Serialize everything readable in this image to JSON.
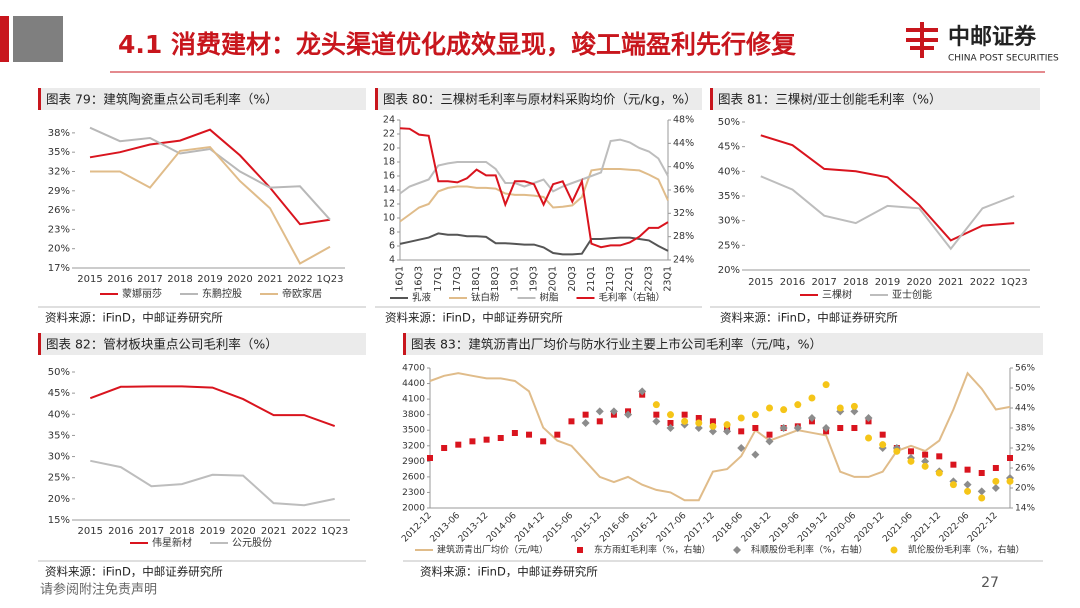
{
  "header": {
    "title": "4.1 消费建材：龙头渠道优化成效显现，竣工端盈利先行修复",
    "logo_cn": "中邮证券",
    "logo_en": "CHINA POST SECURITIES"
  },
  "footer": {
    "disclaimer": "请参阅附注免责声明",
    "page": "27"
  },
  "chart_data": [
    {
      "type": "line",
      "title": "图表 79：建筑陶瓷重点公司毛利率（%）",
      "source": "资料来源：iFinD，中邮证券研究所",
      "categories": [
        "2015",
        "2016",
        "2017",
        "2018",
        "2019",
        "2020",
        "2021",
        "2022",
        "1Q23"
      ],
      "ylim": [
        17,
        40
      ],
      "yticks": [
        {
          "value": 17,
          "label": "17%"
        },
        {
          "value": 20,
          "label": "20%"
        },
        {
          "value": 23,
          "label": "23%"
        },
        {
          "value": 26,
          "label": "26%"
        },
        {
          "value": 29,
          "label": "29%"
        },
        {
          "value": 32,
          "label": "32%"
        },
        {
          "value": 35,
          "label": "35%"
        },
        {
          "value": 38,
          "label": "38%"
        }
      ],
      "series": [
        {
          "name": "蒙娜丽莎",
          "color": "#d9141e",
          "values": [
            34.2,
            35.0,
            36.2,
            36.8,
            38.5,
            34.5,
            29.5,
            23.8,
            24.5
          ]
        },
        {
          "name": "东鹏控股",
          "color": "#b8b8b8",
          "values": [
            38.8,
            36.7,
            37.2,
            34.8,
            35.5,
            32.0,
            29.5,
            29.7,
            24.5
          ]
        },
        {
          "name": "帝欧家居",
          "color": "#e0bc8a",
          "values": [
            32.0,
            32.0,
            29.5,
            35.2,
            35.8,
            30.5,
            26.3,
            17.7,
            20.3
          ]
        }
      ]
    },
    {
      "type": "line",
      "title": "图表 80：三棵树毛利率与原材料采购均价（元/kg，%）",
      "source": "资料来源：iFinD，中邮证券研究所",
      "categories": [
        "16Q1",
        null,
        "16Q3",
        null,
        "17Q1",
        null,
        "17Q3",
        null,
        "18Q1",
        null,
        "18Q3",
        null,
        "19Q1",
        null,
        "19Q3",
        null,
        "20Q1",
        null,
        "20Q3",
        null,
        "21Q1",
        null,
        "21Q3",
        null,
        "22Q1",
        null,
        "22Q3",
        null,
        "23Q1"
      ],
      "ylim": [
        4,
        24
      ],
      "yticks": [
        4,
        6,
        8,
        10,
        12,
        14,
        16,
        18,
        20,
        22,
        24
      ],
      "y2lim": [
        24,
        48
      ],
      "y2ticks": [
        {
          "value": 24,
          "label": "24%"
        },
        {
          "value": 28,
          "label": "28%"
        },
        {
          "value": 32,
          "label": "32%"
        },
        {
          "value": 36,
          "label": "36%"
        },
        {
          "value": 40,
          "label": "40%"
        },
        {
          "value": 44,
          "label": "44%"
        },
        {
          "value": 48,
          "label": "48%"
        }
      ],
      "series": [
        {
          "name": "乳液",
          "color": "#555555",
          "values": [
            6.3,
            6.6,
            6.9,
            7.2,
            7.8,
            7.6,
            7.6,
            7.4,
            7.4,
            7.3,
            6.4,
            6.4,
            6.3,
            6.2,
            6.2,
            5.8,
            5.0,
            4.8,
            4.8,
            4.9,
            7.0,
            7.0,
            7.1,
            7.2,
            7.2,
            7.0,
            6.8,
            6.0,
            5.3
          ]
        },
        {
          "name": "钛白粉",
          "color": "#e0bc8a",
          "values": [
            9.5,
            10.5,
            11.5,
            12,
            13.8,
            14.3,
            14.5,
            14.5,
            14.3,
            14.3,
            14.2,
            13.5,
            13.3,
            13.3,
            13.2,
            13.0,
            11.5,
            11.6,
            11.8,
            13,
            16.8,
            17.0,
            17.0,
            17.0,
            16.9,
            16.8,
            16.2,
            15.5,
            12.5
          ]
        },
        {
          "name": "树脂",
          "color": "#bdbdbd",
          "values": [
            13.5,
            14.5,
            15,
            15.5,
            17.5,
            17.8,
            18,
            18,
            18,
            18,
            17,
            15,
            15,
            14.5,
            15,
            15.5,
            13.8,
            14.5,
            15,
            15.5,
            16,
            16.5,
            21,
            21.2,
            20.8,
            20,
            19.5,
            18.5,
            16
          ]
        },
        {
          "name": "毛利率（右轴）",
          "color": "#d9141e",
          "axis": "y2",
          "values": [
            46.6,
            46.5,
            45.5,
            45.3,
            37.5,
            37.5,
            37.3,
            38,
            39.5,
            38.5,
            38.5,
            33.5,
            37.5,
            37.5,
            37.0,
            33.5,
            37.0,
            37.5,
            34,
            37.5,
            26.8,
            26.2,
            26.5,
            26.5,
            27,
            28,
            29.5,
            29.5,
            30.5
          ]
        }
      ]
    },
    {
      "type": "line",
      "title": "图表 81：三棵树/亚士创能毛利率（%）",
      "source": "资料来源：iFinD，中邮证券研究所",
      "categories": [
        "2015",
        "2016",
        "2017",
        "2018",
        "2019",
        "2020",
        "2021",
        "2022",
        "1Q23"
      ],
      "ylim": [
        20,
        50
      ],
      "yticks": [
        {
          "value": 20,
          "label": "20%"
        },
        {
          "value": 25,
          "label": "25%"
        },
        {
          "value": 30,
          "label": "30%"
        },
        {
          "value": 35,
          "label": "35%"
        },
        {
          "value": 40,
          "label": "40%"
        },
        {
          "value": 45,
          "label": "45%"
        },
        {
          "value": 50,
          "label": "50%"
        }
      ],
      "series": [
        {
          "name": "三棵树",
          "color": "#d9141e",
          "values": [
            47.3,
            45.3,
            40.5,
            40.0,
            38.8,
            33.2,
            26.0,
            29.0,
            29.5
          ]
        },
        {
          "name": "亚士创能",
          "color": "#bdbdbd",
          "values": [
            39.0,
            36.3,
            31.0,
            29.5,
            33.0,
            32.5,
            24.3,
            32.5,
            35.0
          ]
        }
      ]
    },
    {
      "type": "line",
      "title": "图表 82：管材板块重点公司毛利率（%）",
      "source": "资料来源：iFinD，中邮证券研究所",
      "categories": [
        "2015",
        "2016",
        "2017",
        "2018",
        "2019",
        "2020",
        "2021",
        "2022",
        "1Q23"
      ],
      "ylim": [
        15,
        50
      ],
      "yticks": [
        {
          "value": 15,
          "label": "15%"
        },
        {
          "value": 20,
          "label": "20%"
        },
        {
          "value": 25,
          "label": "25%"
        },
        {
          "value": 30,
          "label": "30%"
        },
        {
          "value": 35,
          "label": "35%"
        },
        {
          "value": 40,
          "label": "40%"
        },
        {
          "value": 45,
          "label": "45%"
        },
        {
          "value": 50,
          "label": "50%"
        }
      ],
      "series": [
        {
          "name": "伟星新材",
          "color": "#d9141e",
          "values": [
            43.8,
            46.5,
            46.6,
            46.6,
            46.3,
            43.6,
            39.8,
            39.8,
            37.2
          ]
        },
        {
          "name": "公元股份",
          "color": "#bdbdbd",
          "values": [
            29.0,
            27.5,
            23.0,
            23.5,
            25.7,
            25.5,
            19.0,
            18.5,
            20.0
          ]
        }
      ]
    },
    {
      "type": "combo",
      "title": "图表 83：建筑沥青出厂均价与防水行业主要上市公司毛利率（元/吨，%）",
      "source": "资料来源：iFinD，中邮证券研究所",
      "categories": [
        "2012-12",
        null,
        "2013-06",
        null,
        "2013-12",
        null,
        "2014-06",
        null,
        "2014-12",
        null,
        "2015-06",
        null,
        "2015-12",
        null,
        "2016-06",
        null,
        "2016-12",
        null,
        "2017-06",
        null,
        "2017-12",
        null,
        "2018-06",
        null,
        "2018-12",
        null,
        "2019-06",
        null,
        "2019-12",
        null,
        "2020-06",
        null,
        "2020-12",
        null,
        "2021-06",
        null,
        "2021-12",
        null,
        "2022-06",
        null,
        "2022-12",
        null
      ],
      "ylim": [
        2000,
        4700
      ],
      "yticks": [
        2000,
        2300,
        2600,
        2900,
        3200,
        3500,
        3800,
        4100,
        4400,
        4700
      ],
      "y2lim": [
        14,
        56
      ],
      "y2ticks": [
        {
          "value": 14,
          "label": "14%"
        },
        {
          "value": 20,
          "label": "20%"
        },
        {
          "value": 26,
          "label": "26%"
        },
        {
          "value": 32,
          "label": "32%"
        },
        {
          "value": 38,
          "label": "38%"
        },
        {
          "value": 44,
          "label": "44%"
        },
        {
          "value": 50,
          "label": "50%"
        },
        {
          "value": 56,
          "label": "56%"
        }
      ],
      "series": [
        {
          "name": "建筑沥青出厂均价（元/吨）",
          "color": "#e0bc8a",
          "values": [
            4450,
            4550,
            4600,
            4550,
            4500,
            4500,
            4450,
            4250,
            3550,
            3300,
            3200,
            2900,
            2600,
            2500,
            2600,
            2450,
            2350,
            2300,
            2150,
            2150,
            2700,
            2750,
            3000,
            3500,
            3300,
            3400,
            3500,
            3450,
            3400,
            2700,
            2600,
            2600,
            2700,
            3100,
            3200,
            3100,
            3300,
            3900,
            4600,
            4300,
            3900,
            3950
          ]
        },
        {
          "name": "东方雨虹毛利率（%，右轴）",
          "color": "#d9141e",
          "axis": "y2",
          "marker": "square",
          "values": [
            29,
            32,
            33,
            34,
            34.5,
            35,
            36.5,
            36,
            34,
            36,
            40,
            42,
            40,
            42,
            43,
            48,
            42,
            39.5,
            42,
            41,
            40,
            38,
            37,
            38,
            36,
            38,
            38.5,
            40,
            37,
            38,
            38,
            40,
            36,
            32,
            31,
            30,
            29.5,
            27,
            25.5,
            24.5,
            26,
            29
          ]
        },
        {
          "name": "科顺股份毛利率（%，右轴）",
          "color": "#8c8c8c",
          "axis": "y2",
          "marker": "diamond",
          "values": [
            null,
            null,
            null,
            null,
            null,
            null,
            null,
            null,
            null,
            null,
            null,
            39.5,
            43,
            43,
            42,
            49,
            40,
            38,
            39,
            38,
            37,
            37,
            32,
            30,
            34,
            38,
            38,
            41,
            38,
            43,
            43,
            41,
            32,
            32,
            29,
            28,
            25,
            22,
            21,
            19,
            20,
            23
          ]
        },
        {
          "name": "凯伦股份毛利率（%，右轴）",
          "color": "#f5c518",
          "axis": "y2",
          "marker": "circle",
          "values": [
            null,
            null,
            null,
            null,
            null,
            null,
            null,
            null,
            null,
            null,
            null,
            null,
            null,
            null,
            null,
            null,
            45,
            42,
            40,
            39.5,
            38.5,
            39,
            41,
            42,
            44,
            43.5,
            45,
            47,
            51,
            44,
            44.5,
            35,
            33,
            31,
            28,
            26.5,
            24.5,
            21,
            19,
            17,
            22,
            22
          ]
        }
      ]
    }
  ]
}
